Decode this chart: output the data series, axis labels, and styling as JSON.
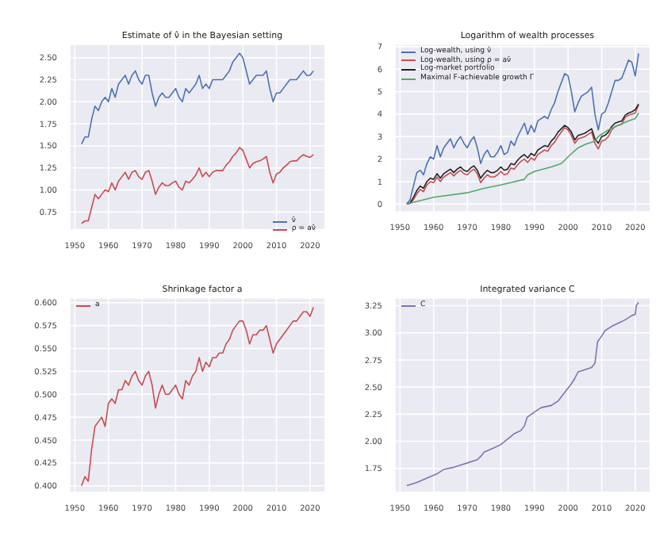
{
  "chart_data": [
    {
      "type": "line",
      "title": "Estimate of ν̂ in the Bayesian setting",
      "xlim": [
        1948.5,
        2024.5
      ],
      "xticks": [
        1950,
        1960,
        1970,
        1980,
        1990,
        2000,
        2010,
        2020
      ],
      "ylim": [
        0.55,
        2.65
      ],
      "yticks": [
        {
          "value": 0.75,
          "label": "0.75"
        },
        {
          "value": 1,
          "label": "1.00"
        },
        {
          "value": 1.25,
          "label": "1.25"
        },
        {
          "value": 1.5,
          "label": "1.50"
        },
        {
          "value": 1.75,
          "label": "1.75"
        },
        {
          "value": 2,
          "label": "2.00"
        },
        {
          "value": 2.25,
          "label": "2.25"
        },
        {
          "value": 2.5,
          "label": "2.50"
        }
      ],
      "grid": true,
      "legend": "bottom right",
      "x": [
        1952,
        1953,
        1954,
        1955,
        1956,
        1957,
        1958,
        1959,
        1960,
        1961,
        1962,
        1963,
        1964,
        1965,
        1966,
        1967,
        1968,
        1969,
        1970,
        1971,
        1972,
        1973,
        1974,
        1975,
        1976,
        1977,
        1978,
        1979,
        1980,
        1981,
        1982,
        1983,
        1984,
        1985,
        1986,
        1987,
        1988,
        1989,
        1990,
        1991,
        1992,
        1993,
        1994,
        1995,
        1996,
        1997,
        1998,
        1999,
        2000,
        2001,
        2002,
        2003,
        2004,
        2005,
        2006,
        2007,
        2008,
        2009,
        2010,
        2011,
        2012,
        2013,
        2014,
        2015,
        2016,
        2017,
        2018,
        2019,
        2020,
        2021
      ],
      "series": [
        {
          "name": "ν̂",
          "color": "#4c72b0",
          "values": [
            1.52,
            1.6,
            1.6,
            1.8,
            1.95,
            1.9,
            2.0,
            2.05,
            2.0,
            2.15,
            2.05,
            2.2,
            2.25,
            2.3,
            2.2,
            2.3,
            2.35,
            2.25,
            2.2,
            2.3,
            2.3,
            2.1,
            1.95,
            2.05,
            2.1,
            2.05,
            2.05,
            2.1,
            2.15,
            2.05,
            2.0,
            2.15,
            2.1,
            2.15,
            2.2,
            2.3,
            2.15,
            2.2,
            2.15,
            2.25,
            2.25,
            2.25,
            2.25,
            2.3,
            2.35,
            2.45,
            2.5,
            2.55,
            2.5,
            2.35,
            2.2,
            2.25,
            2.3,
            2.3,
            2.3,
            2.35,
            2.15,
            2.0,
            2.1,
            2.1,
            2.15,
            2.2,
            2.25,
            2.25,
            2.25,
            2.3,
            2.35,
            2.3,
            2.3,
            2.35
          ]
        },
        {
          "name": "ρ = aν̂",
          "color": "#c44e52",
          "values": [
            0.62,
            0.65,
            0.65,
            0.8,
            0.95,
            0.9,
            0.95,
            1.0,
            0.98,
            1.08,
            1.0,
            1.1,
            1.15,
            1.2,
            1.12,
            1.2,
            1.22,
            1.15,
            1.12,
            1.2,
            1.22,
            1.1,
            0.95,
            1.03,
            1.08,
            1.05,
            1.05,
            1.08,
            1.1,
            1.03,
            1.0,
            1.1,
            1.08,
            1.12,
            1.17,
            1.25,
            1.15,
            1.2,
            1.15,
            1.2,
            1.22,
            1.22,
            1.22,
            1.28,
            1.32,
            1.38,
            1.42,
            1.48,
            1.45,
            1.35,
            1.25,
            1.3,
            1.32,
            1.33,
            1.35,
            1.38,
            1.2,
            1.08,
            1.18,
            1.2,
            1.25,
            1.28,
            1.32,
            1.33,
            1.33,
            1.37,
            1.4,
            1.38,
            1.37,
            1.4
          ]
        }
      ]
    },
    {
      "type": "line",
      "title": "Logarithm of wealth processes",
      "xlim": [
        1948.5,
        2024.5
      ],
      "xticks": [
        1950,
        1960,
        1970,
        1980,
        1990,
        2000,
        2010,
        2020
      ],
      "ylim": [
        -0.35,
        7.1
      ],
      "yticks": [
        0,
        1,
        2,
        3,
        4,
        5,
        6,
        7
      ],
      "grid": true,
      "legend": "top left",
      "x": [
        1952,
        1953,
        1954,
        1955,
        1956,
        1957,
        1958,
        1959,
        1960,
        1961,
        1962,
        1963,
        1964,
        1965,
        1966,
        1967,
        1968,
        1969,
        1970,
        1971,
        1972,
        1973,
        1974,
        1975,
        1976,
        1977,
        1978,
        1979,
        1980,
        1981,
        1982,
        1983,
        1984,
        1985,
        1986,
        1987,
        1988,
        1989,
        1990,
        1991,
        1992,
        1993,
        1994,
        1995,
        1996,
        1997,
        1998,
        1999,
        2000,
        2001,
        2002,
        2003,
        2004,
        2005,
        2006,
        2007,
        2008,
        2009,
        2010,
        2011,
        2012,
        2013,
        2014,
        2015,
        2016,
        2017,
        2018,
        2019,
        2020,
        2021
      ],
      "series": [
        {
          "name": "Log-wealth, using ν̂",
          "color": "#4c72b0",
          "values": [
            0,
            0.2,
            0.8,
            1.4,
            1.5,
            1.3,
            1.8,
            2.1,
            2.0,
            2.6,
            2.1,
            2.5,
            2.7,
            2.9,
            2.5,
            2.8,
            3.0,
            2.7,
            2.5,
            2.8,
            3.0,
            2.5,
            1.8,
            2.2,
            2.4,
            2.1,
            2.1,
            2.3,
            2.6,
            2.2,
            2.3,
            2.8,
            2.6,
            3.0,
            3.3,
            3.6,
            3.1,
            3.5,
            3.2,
            3.7,
            3.8,
            3.9,
            3.8,
            4.2,
            4.5,
            5.0,
            5.4,
            5.8,
            5.7,
            5.0,
            4.1,
            4.5,
            4.8,
            4.9,
            5.0,
            5.2,
            4.0,
            3.3,
            4.0,
            4.1,
            4.5,
            5.0,
            5.5,
            5.5,
            5.6,
            6.0,
            6.4,
            6.3,
            5.7,
            6.7
          ]
        },
        {
          "name": "Log-wealth, using ρ = aν̂",
          "color": "#c44e52",
          "values": [
            0,
            0.03,
            0.2,
            0.45,
            0.65,
            0.55,
            0.85,
            1.0,
            0.95,
            1.2,
            1.0,
            1.2,
            1.3,
            1.4,
            1.25,
            1.4,
            1.5,
            1.35,
            1.3,
            1.45,
            1.55,
            1.35,
            0.95,
            1.15,
            1.3,
            1.2,
            1.2,
            1.3,
            1.45,
            1.3,
            1.35,
            1.6,
            1.55,
            1.75,
            1.9,
            2.0,
            1.85,
            2.05,
            1.95,
            2.2,
            2.3,
            2.4,
            2.35,
            2.6,
            2.75,
            3.0,
            3.2,
            3.4,
            3.3,
            3.05,
            2.7,
            2.9,
            2.95,
            3.0,
            3.1,
            3.2,
            2.7,
            2.45,
            2.8,
            2.85,
            3.0,
            3.3,
            3.45,
            3.5,
            3.55,
            3.85,
            3.95,
            4.0,
            4.05,
            4.4
          ]
        },
        {
          "name": "Log-market portfolio",
          "color": "#222222",
          "values": [
            0,
            0.05,
            0.3,
            0.6,
            0.8,
            0.7,
            1.0,
            1.15,
            1.1,
            1.35,
            1.15,
            1.35,
            1.45,
            1.55,
            1.4,
            1.55,
            1.65,
            1.5,
            1.45,
            1.6,
            1.7,
            1.5,
            1.15,
            1.35,
            1.5,
            1.4,
            1.4,
            1.5,
            1.65,
            1.5,
            1.55,
            1.8,
            1.75,
            1.95,
            2.1,
            2.2,
            2.05,
            2.25,
            2.15,
            2.4,
            2.5,
            2.6,
            2.55,
            2.8,
            2.95,
            3.2,
            3.35,
            3.5,
            3.4,
            3.2,
            2.85,
            3.05,
            3.1,
            3.15,
            3.25,
            3.35,
            2.9,
            2.7,
            3.0,
            3.05,
            3.2,
            3.45,
            3.6,
            3.65,
            3.7,
            3.95,
            4.05,
            4.1,
            4.2,
            4.45
          ]
        },
        {
          "name": "Maximal F-achievable growth Γ",
          "color": "#55a868",
          "x": [
            1952,
            1960,
            1970,
            1975,
            1980,
            1987,
            1988,
            1990,
            1995,
            1998,
            2000,
            2003,
            2005,
            2008,
            2009,
            2012,
            2015,
            2018,
            2020,
            2021
          ],
          "values": [
            0,
            0.3,
            0.5,
            0.7,
            0.85,
            1.1,
            1.3,
            1.45,
            1.65,
            1.8,
            2.1,
            2.5,
            2.65,
            2.8,
            3.0,
            3.3,
            3.5,
            3.7,
            3.8,
            4.05
          ]
        }
      ]
    },
    {
      "type": "line",
      "title": "Shrinkage factor a",
      "xlim": [
        1948.5,
        2024.5
      ],
      "xticks": [
        1950,
        1960,
        1970,
        1980,
        1990,
        2000,
        2010,
        2020
      ],
      "ylim": [
        0.393,
        0.605
      ],
      "yticks": [
        {
          "value": 0.4,
          "label": "0.400"
        },
        {
          "value": 0.425,
          "label": "0.425"
        },
        {
          "value": 0.45,
          "label": "0.450"
        },
        {
          "value": 0.475,
          "label": "0.475"
        },
        {
          "value": 0.5,
          "label": "0.500"
        },
        {
          "value": 0.525,
          "label": "0.525"
        },
        {
          "value": 0.55,
          "label": "0.550"
        },
        {
          "value": 0.575,
          "label": "0.575"
        },
        {
          "value": 0.6,
          "label": "0.600"
        }
      ],
      "grid": true,
      "legend": "top left",
      "x": [
        1952,
        1953,
        1954,
        1955,
        1956,
        1957,
        1958,
        1959,
        1960,
        1961,
        1962,
        1963,
        1964,
        1965,
        1966,
        1967,
        1968,
        1969,
        1970,
        1971,
        1972,
        1973,
        1974,
        1975,
        1976,
        1977,
        1978,
        1979,
        1980,
        1981,
        1982,
        1983,
        1984,
        1985,
        1986,
        1987,
        1988,
        1989,
        1990,
        1991,
        1992,
        1993,
        1994,
        1995,
        1996,
        1997,
        1998,
        1999,
        2000,
        2001,
        2002,
        2003,
        2004,
        2005,
        2006,
        2007,
        2008,
        2009,
        2010,
        2011,
        2012,
        2013,
        2014,
        2015,
        2016,
        2017,
        2018,
        2019,
        2020,
        2021
      ],
      "series": [
        {
          "name": "a",
          "color": "#c44e52",
          "values": [
            0.4,
            0.41,
            0.405,
            0.44,
            0.465,
            0.47,
            0.475,
            0.465,
            0.49,
            0.495,
            0.49,
            0.505,
            0.505,
            0.515,
            0.51,
            0.52,
            0.525,
            0.515,
            0.51,
            0.52,
            0.525,
            0.51,
            0.485,
            0.5,
            0.51,
            0.5,
            0.5,
            0.505,
            0.51,
            0.5,
            0.495,
            0.515,
            0.51,
            0.52,
            0.525,
            0.54,
            0.525,
            0.535,
            0.53,
            0.54,
            0.54,
            0.545,
            0.545,
            0.555,
            0.56,
            0.57,
            0.575,
            0.58,
            0.58,
            0.57,
            0.555,
            0.565,
            0.565,
            0.57,
            0.57,
            0.575,
            0.56,
            0.545,
            0.555,
            0.56,
            0.565,
            0.57,
            0.575,
            0.58,
            0.58,
            0.585,
            0.59,
            0.59,
            0.585,
            0.595
          ]
        }
      ]
    },
    {
      "type": "line",
      "title": "Integrated variance C",
      "xlim": [
        1948.5,
        2024.5
      ],
      "xticks": [
        1950,
        1960,
        1970,
        1980,
        1990,
        2000,
        2010,
        2020
      ],
      "ylim": [
        1.53,
        3.32
      ],
      "yticks": [
        {
          "value": 1.75,
          "label": "1.75"
        },
        {
          "value": 2,
          "label": "2.00"
        },
        {
          "value": 2.25,
          "label": "2.25"
        },
        {
          "value": 2.5,
          "label": "2.50"
        },
        {
          "value": 2.75,
          "label": "2.75"
        },
        {
          "value": 3,
          "label": "3.00"
        },
        {
          "value": 3.25,
          "label": "3.25"
        }
      ],
      "grid": true,
      "legend": "top left",
      "x": [
        1952,
        1955,
        1958,
        1961,
        1962,
        1963,
        1966,
        1969,
        1970,
        1973,
        1974,
        1975,
        1978,
        1980,
        1982,
        1984,
        1986,
        1987,
        1987.8,
        1990,
        1992,
        1995,
        1997,
        1999,
        2001,
        2002,
        2003,
        2005,
        2007,
        2008,
        2008.8,
        2010,
        2011,
        2013,
        2015,
        2017,
        2019,
        2020,
        2020.3,
        2021
      ],
      "series": [
        {
          "name": "C",
          "color": "#8172b2",
          "values": [
            1.59,
            1.62,
            1.66,
            1.7,
            1.72,
            1.74,
            1.76,
            1.79,
            1.8,
            1.83,
            1.86,
            1.9,
            1.94,
            1.97,
            2.02,
            2.07,
            2.1,
            2.14,
            2.22,
            2.27,
            2.31,
            2.33,
            2.37,
            2.45,
            2.53,
            2.58,
            2.64,
            2.66,
            2.68,
            2.72,
            2.92,
            2.97,
            3.02,
            3.06,
            3.09,
            3.12,
            3.16,
            3.17,
            3.25,
            3.28
          ]
        }
      ]
    }
  ]
}
